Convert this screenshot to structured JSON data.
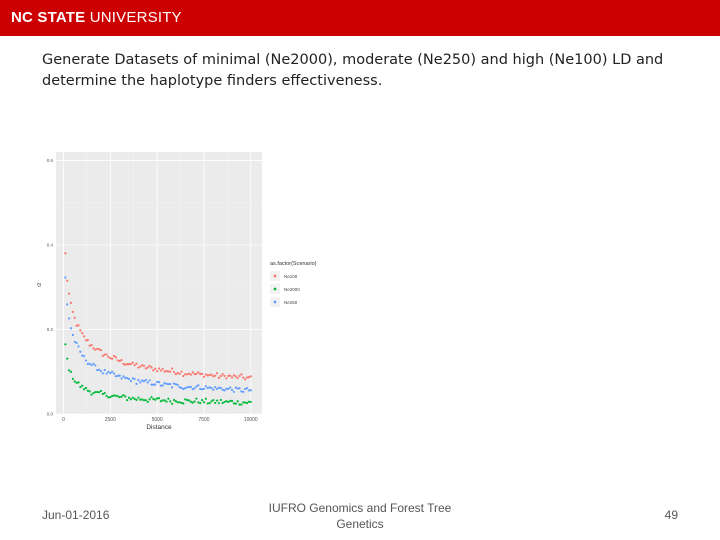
{
  "header": {
    "logo_bold": "NC STATE",
    "logo_rest": " UNIVERSITY",
    "color": "#cc0000"
  },
  "slide": {
    "title": "Generate Datasets of minimal (Ne2000), moderate (Ne250) and high (Ne100) LD and determine the haplotype finders effectiveness."
  },
  "chart_data": {
    "type": "scatter",
    "title": "",
    "xlabel": "Distance",
    "ylabel": "r2",
    "xlim": [
      -400,
      10600
    ],
    "ylim": [
      0.0,
      0.62
    ],
    "x_ticks": [
      0,
      2500,
      5000,
      7500,
      10000
    ],
    "x_tick_labels": [
      "0",
      "2500",
      "5000",
      "7500",
      "10000"
    ],
    "y_ticks": [
      0.0,
      0.2,
      0.4,
      0.6
    ],
    "y_tick_labels": [
      "0.0",
      "0.2",
      "0.4",
      "0.6"
    ],
    "grid": true,
    "background": "#ebebeb",
    "legend_title": "as.factor(Scenario)",
    "legend_position": "right",
    "series": [
      {
        "name": "Ne100",
        "color": "#f8766d",
        "asymptote": 0.045,
        "amplitude": 0.54,
        "decay": 700,
        "exponent": 0.65
      },
      {
        "name": "Ne2000",
        "color": "#00ba38",
        "asymptote": 0.018,
        "amplitude": 0.28,
        "decay": 320,
        "exponent": 0.75
      },
      {
        "name": "Ne250",
        "color": "#619cff",
        "asymptote": 0.03,
        "amplitude": 0.5,
        "decay": 500,
        "exponent": 0.7
      }
    ],
    "points_per_series": 100,
    "x_step": 100
  },
  "footer": {
    "date": "Jun-01-2016",
    "center": "IUFRO Genomics and Forest Tree Genetics",
    "page": "49"
  }
}
